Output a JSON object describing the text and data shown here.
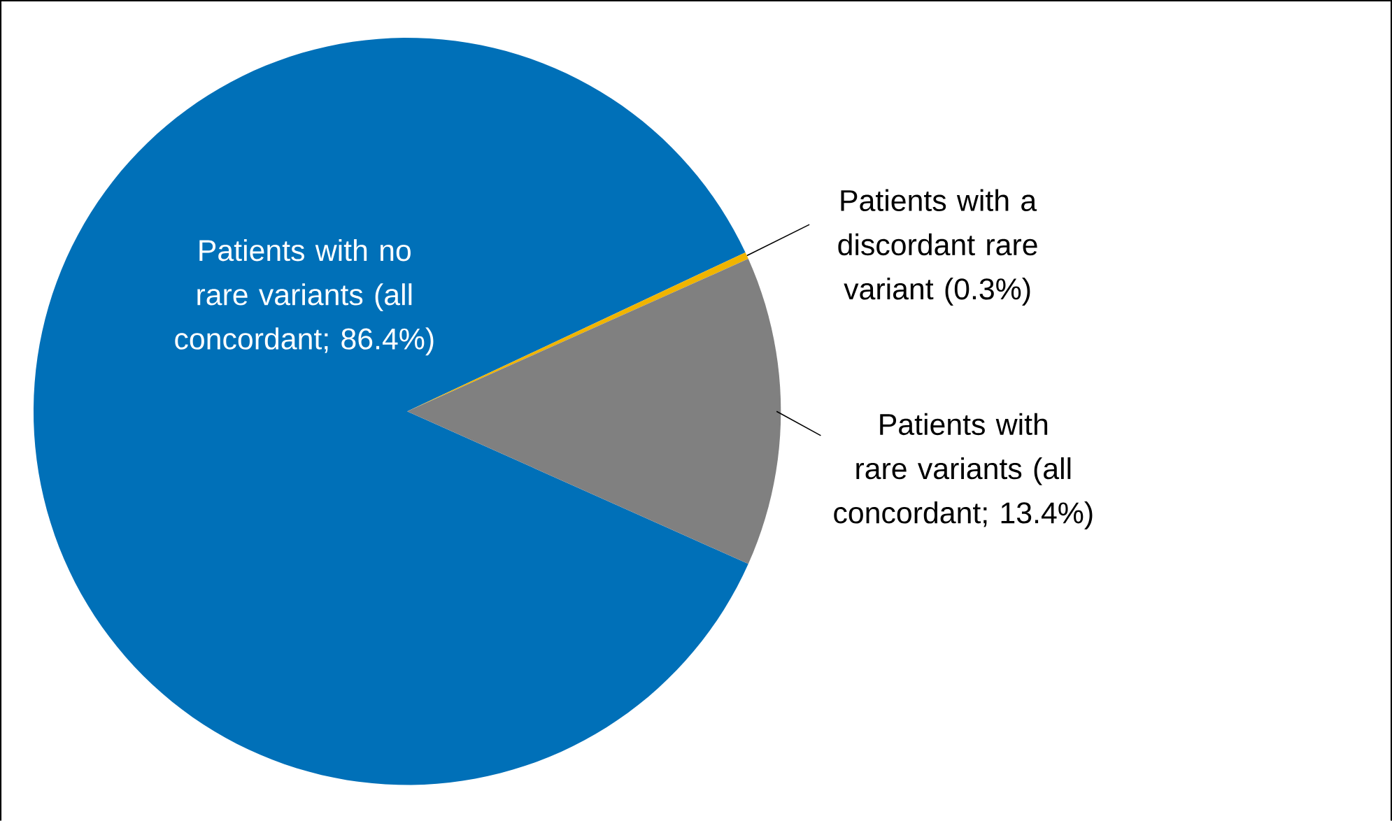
{
  "chart_data": {
    "type": "pie",
    "categories": [
      "Patients with no rare variants (all concordant; 86.4%)",
      "Patients with a discordant rare variant (0.3%)",
      "Patients with rare variants (all concordant; 13.4%)"
    ],
    "values": [
      86.4,
      0.3,
      13.4
    ],
    "colors": [
      "#0070b8",
      "#f0b400",
      "#808080"
    ]
  }
}
